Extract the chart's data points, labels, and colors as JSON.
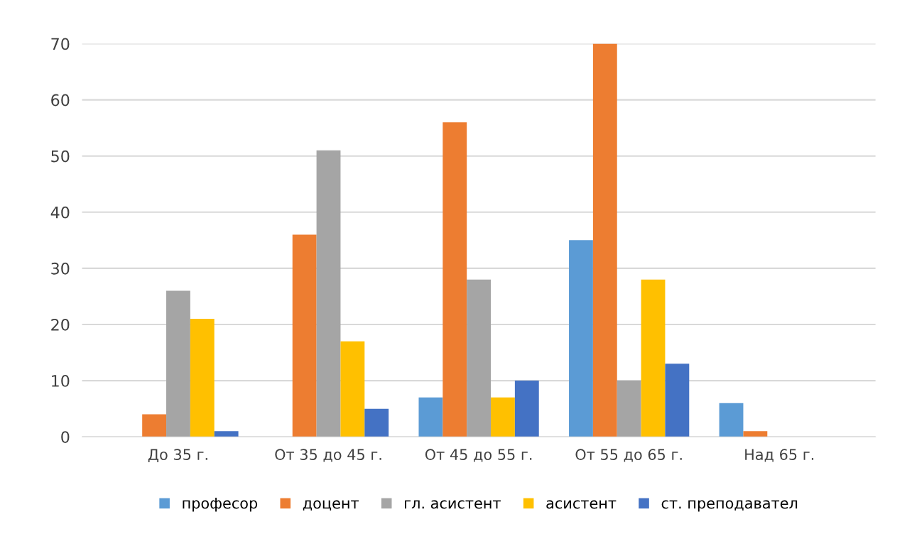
{
  "chart_data": {
    "type": "bar",
    "categories": [
      "До 35 г.",
      "От 35 до 45 г.",
      "От 45 до 55 г.",
      "От 55 до 65 г.",
      "Над 65 г."
    ],
    "series": [
      {
        "name": "професор",
        "color": "#5b9bd5",
        "values": [
          0,
          0,
          7,
          35,
          6
        ]
      },
      {
        "name": "доцент",
        "color": "#ed7d31",
        "values": [
          4,
          36,
          56,
          70,
          1
        ]
      },
      {
        "name": "гл. асистент",
        "color": "#a5a5a5",
        "values": [
          26,
          51,
          28,
          10,
          0
        ]
      },
      {
        "name": "асистент",
        "color": "#ffc000",
        "values": [
          21,
          17,
          7,
          28,
          0
        ]
      },
      {
        "name": "ст. преподавател",
        "color": "#4472c4",
        "values": [
          1,
          5,
          10,
          13,
          0
        ]
      }
    ],
    "ylim": [
      0,
      70
    ],
    "yticks": [
      0,
      10,
      20,
      30,
      40,
      50,
      60,
      70
    ],
    "grid": "y",
    "legend": "bottom"
  }
}
